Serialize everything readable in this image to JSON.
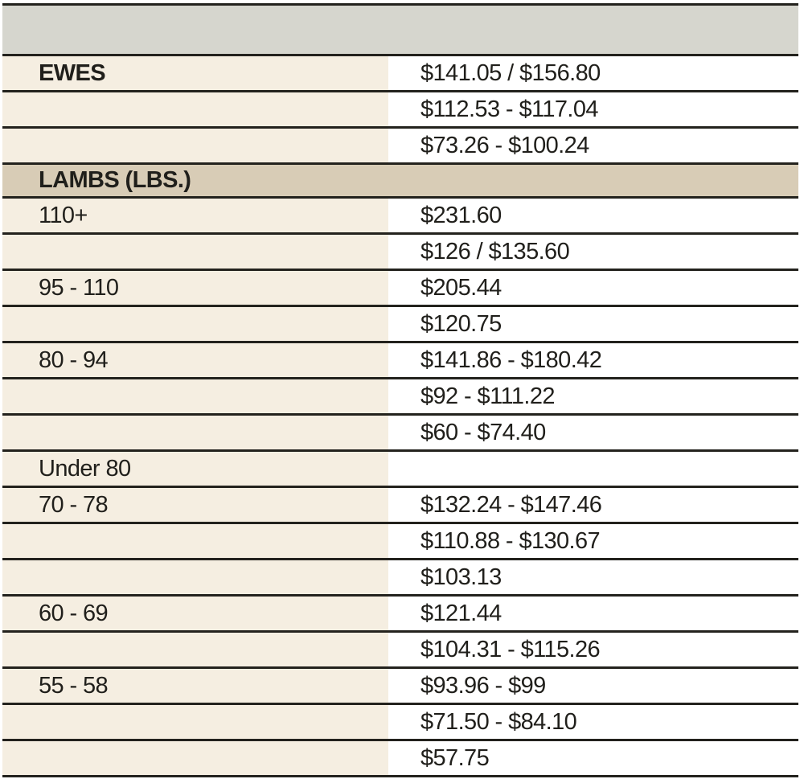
{
  "document": {
    "kind": "livestock-market-price-table"
  },
  "colors": {
    "header_band_bg": "#d6d6ce",
    "section_band_bg": "#d8ccb6",
    "label_column_bg": "#f5eee1",
    "value_column_bg": "#ffffff",
    "rule_line": "#23221d",
    "text": "#201f1b"
  },
  "table": {
    "header_band_text": "",
    "rows": [
      {
        "type": "data",
        "label": "EWES",
        "bold": true,
        "value": "$141.05 / $156.80"
      },
      {
        "type": "data",
        "label": "",
        "bold": false,
        "value": "$112.53 - $117.04"
      },
      {
        "type": "data",
        "label": "",
        "bold": false,
        "value": "$73.26 - $100.24"
      },
      {
        "type": "band",
        "label": "LAMBS (LBS.)"
      },
      {
        "type": "data",
        "label": "110+",
        "bold": false,
        "value": "$231.60"
      },
      {
        "type": "data",
        "label": "",
        "bold": false,
        "value": "$126 / $135.60"
      },
      {
        "type": "data",
        "label": "95 - 110",
        "bold": false,
        "value": "$205.44"
      },
      {
        "type": "data",
        "label": "",
        "bold": false,
        "value": "$120.75"
      },
      {
        "type": "data",
        "label": "80 - 94",
        "bold": false,
        "value": "$141.86 - $180.42"
      },
      {
        "type": "data",
        "label": "",
        "bold": false,
        "value": "$92 - $111.22"
      },
      {
        "type": "data",
        "label": "",
        "bold": false,
        "value": "$60 - $74.40"
      },
      {
        "type": "data",
        "label": "Under 80",
        "bold": false,
        "value": ""
      },
      {
        "type": "data",
        "label": "70 - 78",
        "bold": false,
        "value": "$132.24 - $147.46"
      },
      {
        "type": "data",
        "label": "",
        "bold": false,
        "value": "$110.88 - $130.67"
      },
      {
        "type": "data",
        "label": "",
        "bold": false,
        "value": "$103.13"
      },
      {
        "type": "data",
        "label": "60 - 69",
        "bold": false,
        "value": "$121.44"
      },
      {
        "type": "data",
        "label": "",
        "bold": false,
        "value": "$104.31 - $115.26"
      },
      {
        "type": "data",
        "label": "55 - 58",
        "bold": false,
        "value": "$93.96 - $99"
      },
      {
        "type": "data",
        "label": "",
        "bold": false,
        "value": "$71.50 - $84.10"
      },
      {
        "type": "data",
        "label": "",
        "bold": false,
        "value": "$57.75"
      }
    ]
  }
}
